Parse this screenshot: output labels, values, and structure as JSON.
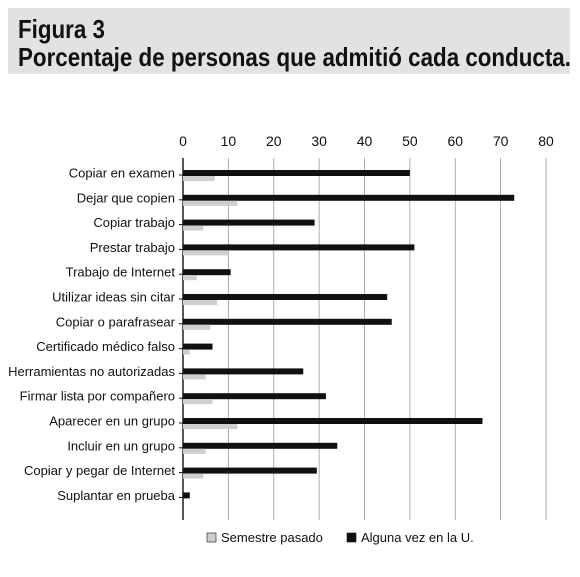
{
  "figure": {
    "label": "Figura 3",
    "title": "Porcentaje de personas que admitió cada conducta."
  },
  "chart_data": {
    "type": "bar",
    "orientation": "horizontal",
    "title": "Porcentaje de personas que admitió cada conducta.",
    "xlim": [
      0,
      80
    ],
    "x_ticks": [
      0,
      10,
      20,
      30,
      40,
      50,
      60,
      70,
      80
    ],
    "grid": true,
    "legend_position": "bottom",
    "categories": [
      "Copiar en examen",
      "Dejar que copien",
      "Copiar trabajo",
      "Prestar trabajo",
      "Trabajo de Internet",
      "Utilizar ideas sin citar",
      "Copiar o parafrasear",
      "Certificado médico falso",
      "Herramientas no autorizadas",
      "Firmar lista por compañero",
      "Aparecer en un grupo",
      "Incluir en un grupo",
      "Copiar y pegar de Internet",
      "Suplantar en prueba"
    ],
    "series": [
      {
        "name": "Alguna vez en la U.",
        "color": "#111111",
        "values": [
          50,
          73,
          29,
          51,
          10.5,
          45,
          46,
          6.5,
          26.5,
          31.5,
          66,
          34,
          29.5,
          1.5
        ]
      },
      {
        "name": "Semestre pasado",
        "color": "#cfcfcf",
        "values": [
          7,
          12,
          4.5,
          10,
          3,
          7.5,
          6,
          1.5,
          5,
          6.5,
          12,
          5,
          4.5,
          0
        ]
      }
    ],
    "legend_order": [
      "Semestre pasado",
      "Alguna vez en la U."
    ]
  }
}
